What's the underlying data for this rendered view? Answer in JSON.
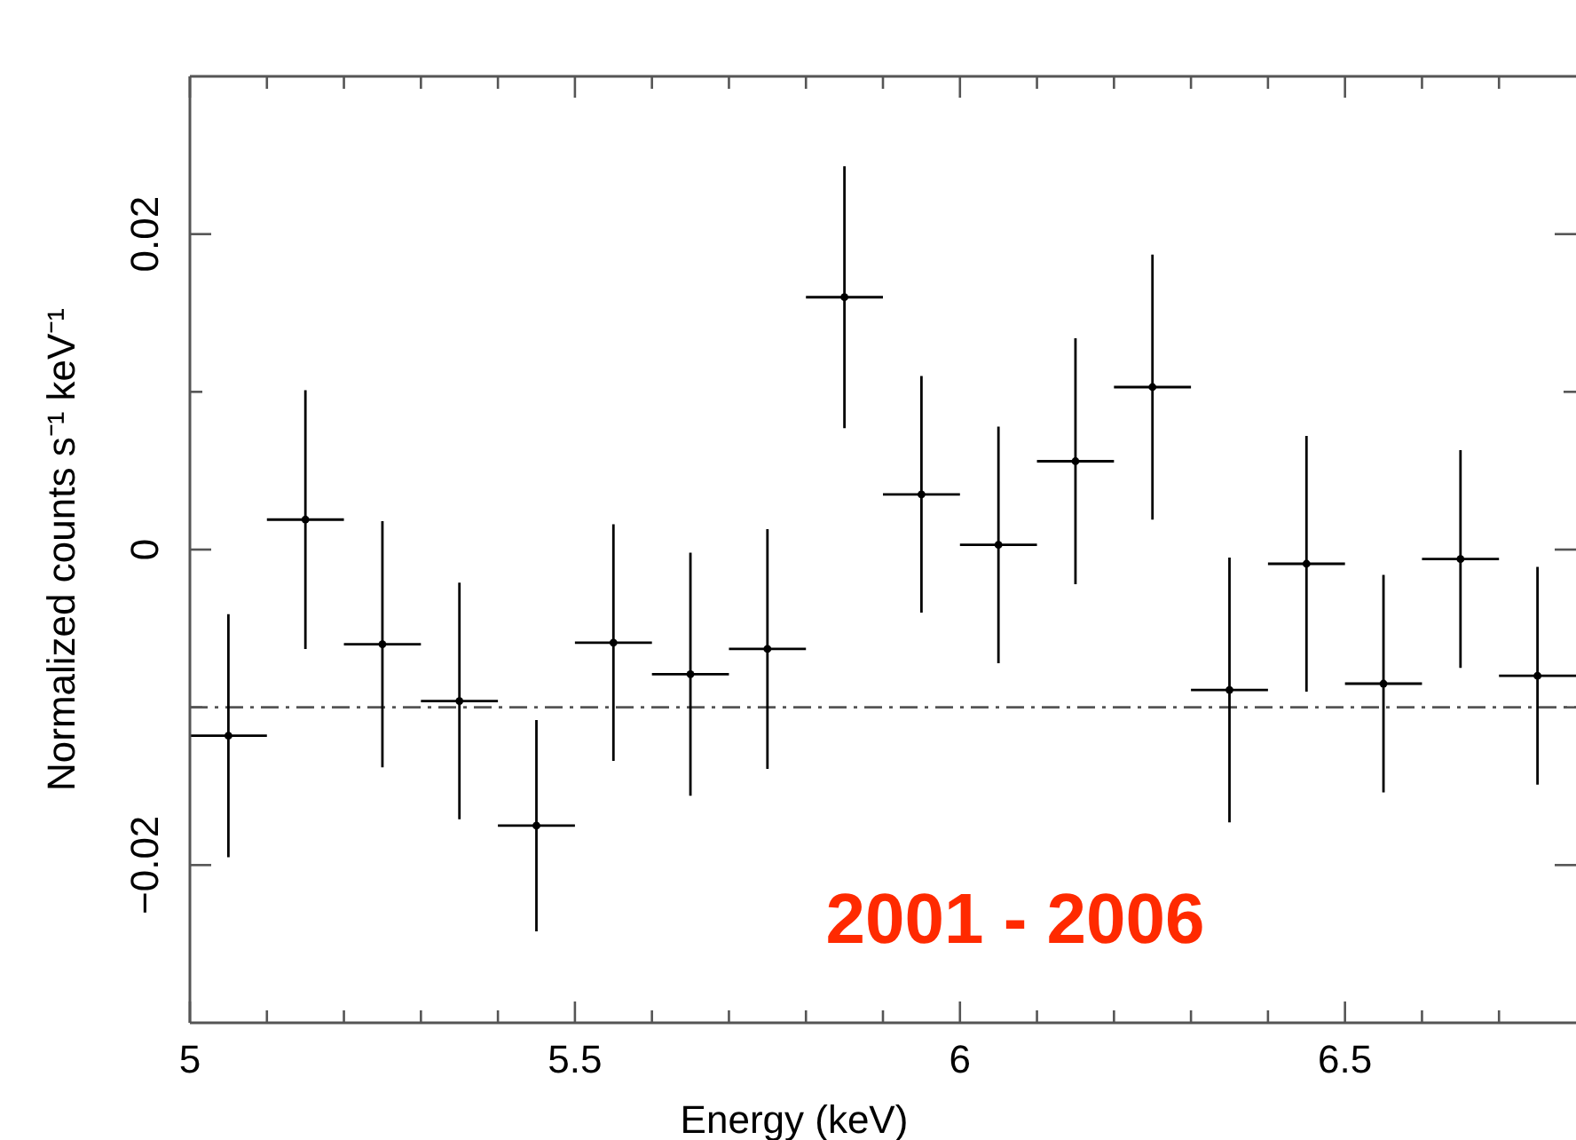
{
  "chart_data": {
    "type": "scatter",
    "xlabel": "Energy (keV)",
    "ylabel": "Normalized counts s⁻¹ keV⁻¹",
    "annotations": [
      "2001 - 2006"
    ],
    "xlim": [
      5,
      6.8
    ],
    "ylim": [
      -0.03,
      0.03
    ],
    "xticks": [
      5,
      {
        "value": 5.1,
        "label": null
      },
      {
        "value": 5.2,
        "label": null
      },
      {
        "value": 5.3,
        "label": null
      },
      {
        "value": 5.4,
        "label": null
      },
      5.5,
      {
        "value": 5.6,
        "label": null
      },
      {
        "value": 5.7,
        "label": null
      },
      {
        "value": 5.8,
        "label": null
      },
      {
        "value": 5.9,
        "label": null
      },
      6,
      {
        "value": 6.1,
        "label": null
      },
      {
        "value": 6.2,
        "label": null
      },
      {
        "value": 6.3,
        "label": null
      },
      {
        "value": 6.4,
        "label": null
      },
      6.5,
      {
        "value": 6.6,
        "label": null
      },
      {
        "value": 6.7,
        "label": null
      }
    ],
    "yticks": [
      {
        "value": -0.02,
        "label": "−0.02"
      },
      {
        "value": -0.01,
        "label": null
      },
      0,
      {
        "value": 0.01,
        "label": null
      },
      0.02
    ],
    "grid": false,
    "ref_lines": [
      {
        "axis": "y",
        "value": -0.01,
        "line_style": "dashdot",
        "color": "#555555"
      }
    ],
    "series": [
      {
        "color": "#000000",
        "x": [
          5.05,
          5.15,
          5.25,
          5.35,
          5.45,
          5.55,
          5.65,
          5.75,
          5.85,
          5.95,
          6.05,
          6.15,
          6.25,
          6.35,
          6.45,
          6.55,
          6.65,
          6.75
        ],
        "values": [
          -0.0118,
          0.0019,
          -0.006,
          -0.0096,
          -0.0175,
          -0.0059,
          -0.0079,
          -0.0063,
          0.016,
          0.0035,
          0.0003,
          0.0056,
          0.0103,
          -0.0089,
          -0.0009,
          -0.0085,
          -0.0006,
          -0.008
        ],
        "errors": [
          0.0077,
          0.0082,
          0.0078,
          0.0075,
          0.0067,
          0.0075,
          0.0077,
          0.0076,
          0.0083,
          0.0075,
          0.0075,
          0.0078,
          0.0084,
          0.0084,
          0.0081,
          0.0069,
          0.0069,
          0.0069
        ],
        "xerrors": [
          0.05,
          0.05,
          0.05,
          0.05,
          0.05,
          0.05,
          0.05,
          0.05,
          0.05,
          0.05,
          0.05,
          0.05,
          0.05,
          0.05,
          0.05,
          0.05,
          0.05,
          0.05
        ]
      }
    ]
  }
}
